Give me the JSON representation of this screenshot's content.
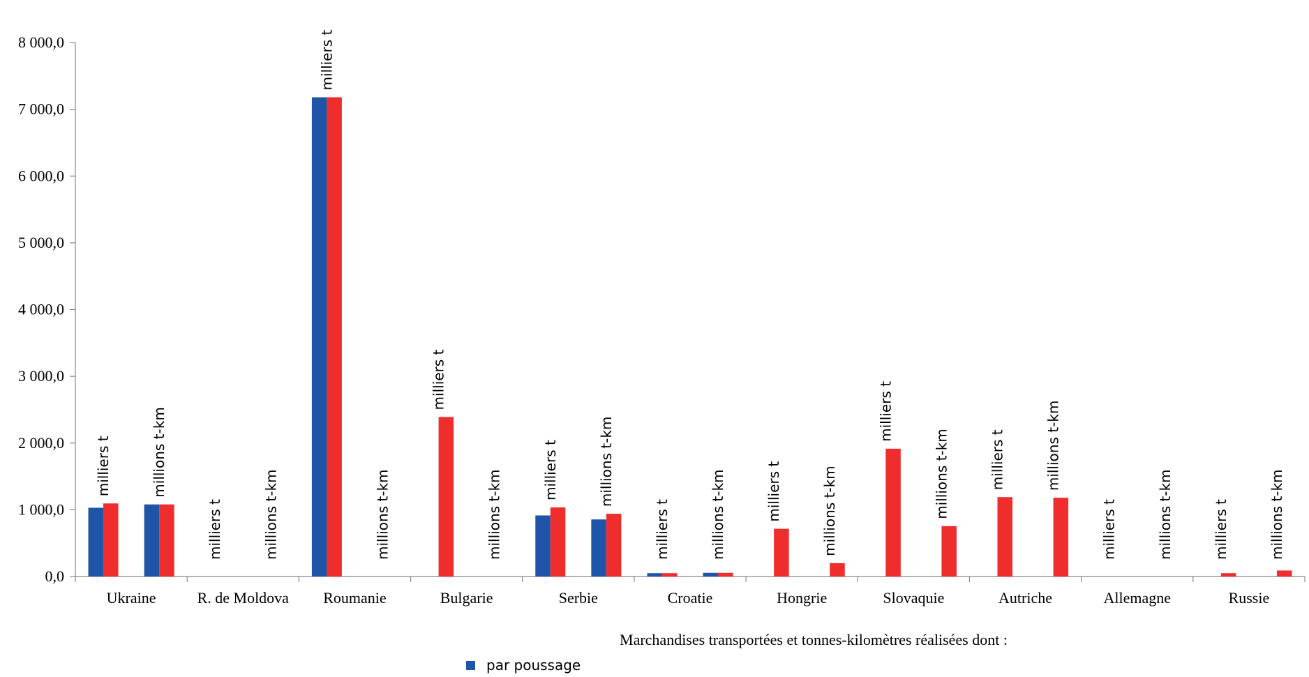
{
  "chart_data": {
    "type": "bar",
    "groups": [
      "Ukraine",
      "R. de Moldova",
      "Roumanie",
      "Bulgarie",
      "Serbie",
      "Croatie",
      "Hongrie",
      "Slovaquie",
      "Autriche",
      "Allemagne",
      "Russie"
    ],
    "categories": [
      "milliers t",
      "millions t-km",
      "milliers t",
      "millions t-km",
      "milliers t",
      "millions t-km",
      "milliers t",
      "millions t-km",
      "milliers t",
      "millions t-km",
      "milliers t",
      "millions t-km",
      "milliers t",
      "millions t-km",
      "milliers t",
      "millions t-km",
      "milliers t",
      "millions t-km",
      "milliers t",
      "millions t-km",
      "milliers t",
      "millions t-km"
    ],
    "series": [
      {
        "name": "par poussage",
        "color": "#1f55a8",
        "values": [
          1030,
          1080,
          null,
          null,
          7180,
          null,
          null,
          null,
          915,
          855,
          50,
          55,
          null,
          null,
          null,
          null,
          null,
          null,
          null,
          null,
          null,
          null
        ]
      },
      {
        "color": "#ef2d2d",
        "values": [
          1095,
          1080,
          null,
          null,
          7180,
          null,
          2390,
          null,
          1035,
          940,
          50,
          55,
          715,
          200,
          1915,
          755,
          1190,
          1180,
          null,
          null,
          50,
          90
        ]
      }
    ],
    "xlabel": "Marchandises transportées et tonnes-kilomètres réalisées dont :",
    "ylim": [
      0,
      8000
    ],
    "yticks": [
      {
        "value": 0,
        "label": "0,0"
      },
      {
        "value": 1000,
        "label": "1 000,0"
      },
      {
        "value": 2000,
        "label": "2 000,0"
      },
      {
        "value": 3000,
        "label": "3 000,0"
      },
      {
        "value": 4000,
        "label": "4 000,0"
      },
      {
        "value": 5000,
        "label": "5 000,0"
      },
      {
        "value": 6000,
        "label": "6 000,0"
      },
      {
        "value": 7000,
        "label": "7 000,0"
      },
      {
        "value": 8000,
        "label": "8 000,0"
      }
    ],
    "grid": false
  }
}
